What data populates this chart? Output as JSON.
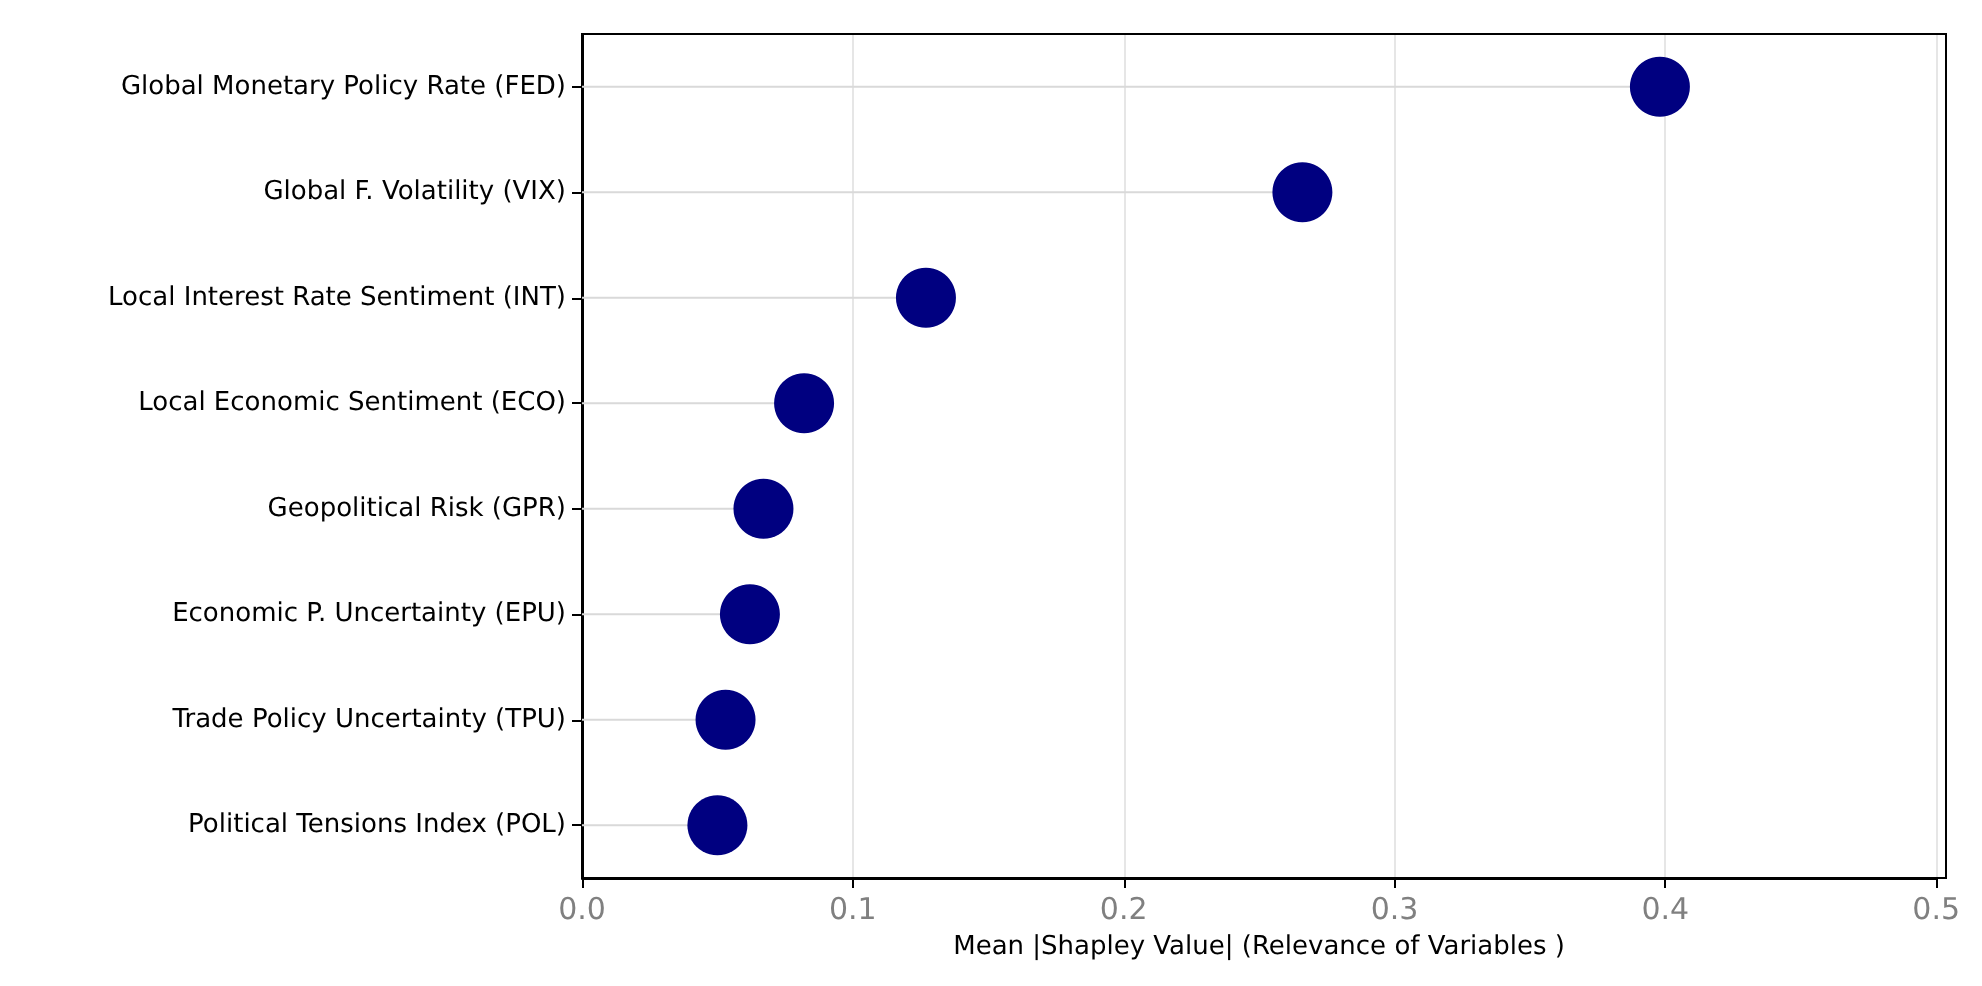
{
  "chart_data": {
    "type": "lollipop",
    "orientation": "horizontal",
    "xlabel": "Mean |Shapley Value| (Relevance of Variables )",
    "categories": [
      "Global Monetary Policy Rate (FED)",
      "Global F. Volatility (VIX)",
      "Local Interest Rate Sentiment (INT)",
      "Local Economic Sentiment (ECO)",
      "Geopolitical Risk (GPR)",
      "Economic P. Uncertainty (EPU)",
      "Trade Policy Uncertainty (TPU)",
      "Political Tensions Index (POL)"
    ],
    "values": [
      0.398,
      0.266,
      0.127,
      0.082,
      0.067,
      0.062,
      0.053,
      0.05
    ],
    "color": "#000080",
    "marker": "circle",
    "grid": "x",
    "xlim": [
      0,
      0.5
    ],
    "xticks": [
      {
        "value": 0,
        "label": "0.0"
      },
      {
        "value": 0.1,
        "label": "0.1"
      },
      {
        "value": 0.2,
        "label": "0.2"
      },
      {
        "value": 0.3,
        "label": "0.3"
      },
      {
        "value": 0.4,
        "label": "0.4"
      },
      {
        "value": 0.5,
        "label": "0.5"
      }
    ]
  }
}
